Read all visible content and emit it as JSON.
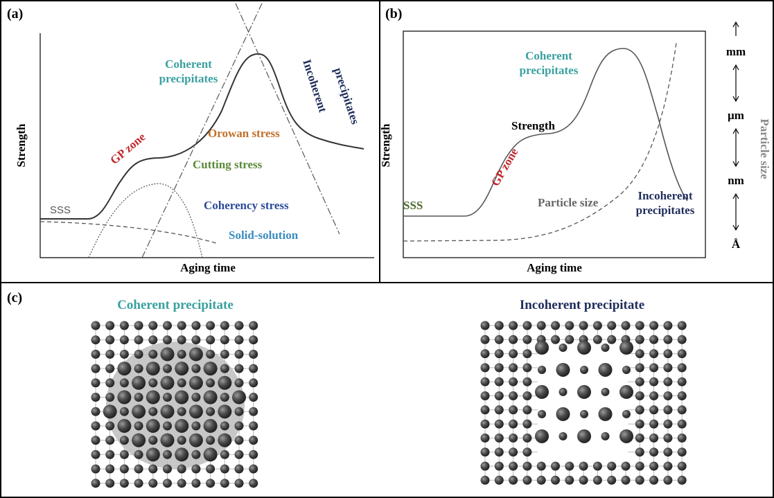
{
  "panel_a": {
    "label": "(a)",
    "y_axis": "Strength",
    "x_axis": "Aging time",
    "coherent": [
      "Coherent",
      "precipitates"
    ],
    "incoherent": [
      "Incoherent",
      "precipitates"
    ],
    "orowan": "Orowan stress",
    "cutting": "Cutting stress",
    "gp_zone": "GP zone",
    "coherency": "Coherency stress",
    "solid_solution": "Solid-solution",
    "sss": "SSS"
  },
  "panel_b": {
    "label": "(b)",
    "y_axis": "Strength",
    "x_axis": "Aging time",
    "coherent": [
      "Coherent",
      "precipitates"
    ],
    "strength": "Strength",
    "gp_zone": "GP zone",
    "particle_size_curve": "Particle size",
    "sss": "SSS",
    "incoherent": [
      "Incoherent",
      "precipitates"
    ],
    "scale": [
      "mm",
      "µm",
      "nm",
      "Å"
    ],
    "scale_title": "Particle size"
  },
  "panel_c": {
    "label": "(c)",
    "coherent_title": "Coherent precipitate",
    "incoherent_title": "Incoherent precipitate"
  }
}
